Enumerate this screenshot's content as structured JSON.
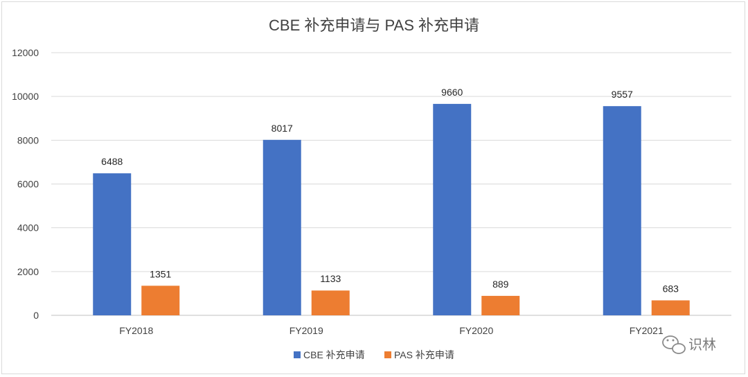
{
  "chart_data": {
    "type": "bar",
    "title": "CBE 补充申请与 PAS 补充申请",
    "categories": [
      "FY2018",
      "FY2019",
      "FY2020",
      "FY2021"
    ],
    "series": [
      {
        "name": "CBE 补充申请",
        "values": [
          6488,
          8017,
          9660,
          9557
        ],
        "color": "#4472c4"
      },
      {
        "name": "PAS 补充申请",
        "values": [
          1351,
          1133,
          889,
          683
        ],
        "color": "#ed7d31"
      }
    ],
    "ylim": [
      0,
      12000
    ],
    "yticks": [
      0,
      2000,
      4000,
      6000,
      8000,
      10000,
      12000
    ],
    "grid": true,
    "legend_position": "bottom",
    "data_labels": true
  },
  "watermark": {
    "text": "识林",
    "icon": "wechat-icon"
  }
}
